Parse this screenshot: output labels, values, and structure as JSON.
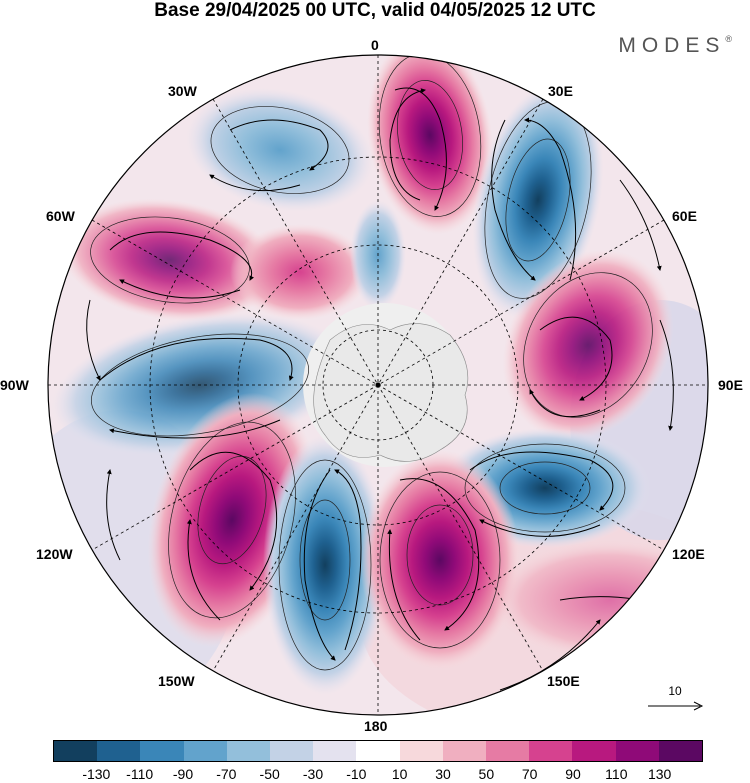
{
  "header": {
    "title": "Base 29/04/2025 00 UTC, valid 04/05/2025 12 UTC",
    "brand": "MODES",
    "brand_mark": "®"
  },
  "longitude_labels": {
    "top": "0",
    "top_right": "30E",
    "right_upper": "60E",
    "right": "90E",
    "right_lower": "120E",
    "bottom_right": "150E",
    "bottom": "180",
    "bottom_left": "150W",
    "left_lower": "120W",
    "left": "90W",
    "left_upper": "60W",
    "top_left": "30W"
  },
  "reference_vector": {
    "label": "10"
  },
  "colorbar": {
    "colors": [
      "#123f5e",
      "#1f6190",
      "#3a86b8",
      "#62a3cc",
      "#93bfdb",
      "#c3d2e6",
      "#e4e2ef",
      "#ffffff",
      "#f7d9dc",
      "#f0afc0",
      "#e67ba4",
      "#d6428f",
      "#b8197f",
      "#8f0a78",
      "#5b0862"
    ],
    "tick_labels": [
      "-130",
      "-110",
      "-90",
      "-70",
      "-50",
      "-30",
      "-10",
      "10",
      "30",
      "50",
      "70",
      "90",
      "110",
      "130"
    ]
  },
  "anomaly_centers": [
    {
      "name": "30W low",
      "lon": -25,
      "lat": 52,
      "value": -45
    },
    {
      "name": "0E high",
      "lon": 8,
      "lat": 48,
      "value": 110
    },
    {
      "name": "30E low",
      "lon": 35,
      "lat": 50,
      "value": -115
    },
    {
      "name": "45W high",
      "lon": -65,
      "lat": 45,
      "value": 80
    },
    {
      "name": "15W high",
      "lon": -45,
      "lat": 60,
      "value": 60
    },
    {
      "name": "60E high",
      "lon": 78,
      "lat": 58,
      "value": 95
    },
    {
      "name": "90W low",
      "lon": -95,
      "lat": 55,
      "value": -70
    },
    {
      "name": "120E low",
      "lon": 115,
      "lat": 55,
      "value": -120
    },
    {
      "name": "120W high",
      "lon": -128,
      "lat": 50,
      "value": 110
    },
    {
      "name": "150W low",
      "lon": -165,
      "lat": 50,
      "value": -125
    },
    {
      "name": "150E high",
      "lon": 158,
      "lat": 50,
      "value": 120
    },
    {
      "name": "0 small low",
      "lon": 0,
      "lat": 72,
      "value": -55
    }
  ]
}
